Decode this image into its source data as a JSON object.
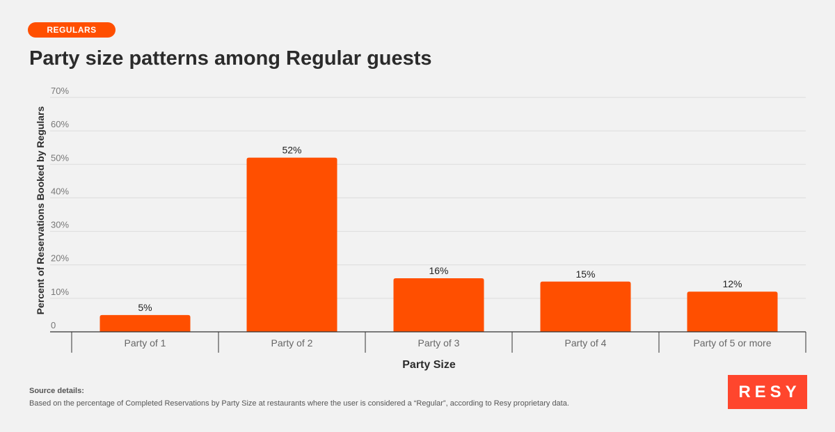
{
  "tag_label": "REGULARS",
  "title": "Party size patterns among Regular guests",
  "chart_data": {
    "type": "bar",
    "xlabel": "Party Size",
    "ylabel": "Percent of Reservations Booked by Regulars",
    "categories": [
      "Party of 1",
      "Party of 2",
      "Party of 3",
      "Party of 4",
      "Party of 5 or more"
    ],
    "values": [
      5,
      52,
      16,
      15,
      12
    ],
    "value_labels": [
      "5%",
      "52%",
      "16%",
      "15%",
      "12%"
    ],
    "ylim": [
      0,
      70
    ],
    "y_ticks": [
      0,
      10,
      20,
      30,
      40,
      50,
      60,
      70
    ],
    "y_tick_labels": [
      "0",
      "10%",
      "20%",
      "30%",
      "40%",
      "50%",
      "60%",
      "70%"
    ],
    "grid": true,
    "bar_color": "#ff4f00"
  },
  "source": {
    "heading": "Source details:",
    "text": "Based on the percentage of Completed Reservations by Party Size at restaurants where the user is considered a “Regular”, according to Resy proprietary data."
  },
  "logo_text": "RESY",
  "colors": {
    "accent": "#ff4f00",
    "logo_bg": "#ff462d",
    "background": "#f2f2f2"
  }
}
